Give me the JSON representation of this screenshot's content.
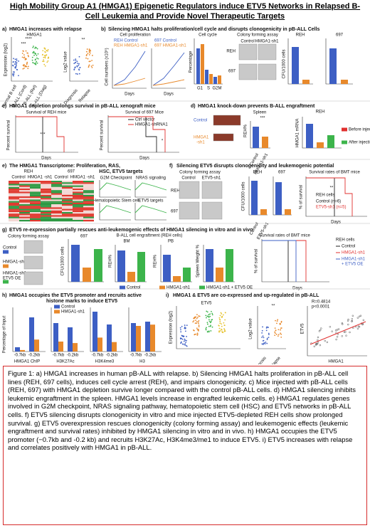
{
  "title": "High Mobility Group A1 (HMGA1) Epigenetic Regulators induce ETV5 Networks in Relapsed B-Cell Leukemia and Provide Novel Therapeutic Targets",
  "panels": {
    "a": {
      "label": "a)",
      "title": [
        "HMGA1 increases with relapse"
      ],
      "texts": [
        "HMGA1",
        "Expression (log2)",
        "Log2 value",
        "Diagnosis",
        "Relapse",
        "Normal B cell",
        "B-ALL (Cord)",
        "B-ALL (Rel)",
        "B-ALL (Diag)",
        "****",
        "***",
        "**"
      ]
    },
    "b": {
      "label": "b)",
      "title": [
        "Silencing HMGA1 halts proliferation/cell cycle and disrupts clonogenicity in pB-ALL Cells"
      ],
      "texts": [
        "Cell proliferation",
        "REH Control",
        "REH HMGA1-sh1",
        "697 Control",
        "697 HMGA1-sh1",
        "Cell numbers (x10⁵)",
        "Days",
        "Days",
        "Cell cycle",
        "Percentage",
        "G1",
        "S",
        "G2M",
        "Colony forming assay",
        "REH",
        "697",
        "Control",
        "HMGA1-sh1",
        "REH",
        "697",
        "CFU/1000 cells"
      ]
    },
    "c": {
      "label": "c)",
      "title": [
        "HMGA1 depletion prolongs survival in pB-ALL xenograft mice"
      ],
      "texts": [
        "Survival of REH mice",
        "Survival of 697 Mice",
        "Ctrl vector",
        "HMGA1-shRNA1",
        "Days",
        "Days",
        "Percent survival",
        "Percent survival",
        "***",
        "*"
      ]
    },
    "d": {
      "label": "d)",
      "title": [
        "HMGA1 knock-down prevents B-ALL engraftment"
      ],
      "texts": [
        "Control",
        "HMGA1",
        "-sh1",
        "Spleen",
        "REH%",
        "Control",
        "HMGA1-sh1",
        "REH",
        "HMGA1 mRNA",
        "Before injection",
        "After injection",
        "***"
      ]
    },
    "e": {
      "label": "e)",
      "title": [
        "The HMGA1 Transcriptome:  Proliferation, RAS,",
        "HSC, ETV5 targets"
      ],
      "texts": [
        "REH",
        "697",
        "Control",
        "HMGA1 -sh1",
        "Control",
        "HMGA1 -sh1",
        "G2M Checkpoint",
        "NRAS signaling",
        "Hematopoietic Stem cell",
        "ETV5 targets"
      ]
    },
    "f": {
      "label": "f)",
      "title": [
        "Silencing ETV5 disrupts clonogenicity and leukemogenic potential"
      ],
      "texts": [
        "Colony forming assay",
        "Control",
        "ETV5-sh1",
        "REH",
        "697",
        "REH",
        "697",
        "CFU/1000 cells",
        "Control",
        "ETV5-sh1",
        "Survival rates of BMT mice",
        "REH cells",
        "Control (n=6)",
        "ETV5-sh1 (n=5)",
        "Days",
        "% of survival",
        "**"
      ]
    },
    "g": {
      "label": "g)",
      "title": [
        "ETV5 re-expression partially rescues anti-leukemogenic effects of HMGA1 silencing in vitro and in vivo"
      ],
      "texts": [
        "Colony forming assay",
        "Control",
        "HMGA1-sh1",
        "HMGA1-sh1 +",
        "ETV5 OE",
        "697",
        "CFU/1000 cells",
        "B-ALL cell engraftment (REH cells)",
        "BM",
        "PB",
        "REH%",
        "REH%",
        "Spleen Weight %",
        "Survival rates of BMT mice",
        "REH cells",
        "Control",
        "HMGA1-sh1",
        "HMGA1-sh1",
        "+ ETV5 OE",
        "Days",
        "% of survival",
        "Control",
        "HMGA1-sh1",
        "HMGA1-sh1 + ETV5 OE"
      ]
    },
    "h": {
      "label": "h)",
      "title": [
        "HMGA1 occupies the ETV5 promoter and recruits active",
        "histone marks to induce ETV5"
      ],
      "texts": [
        "Control",
        "HMGA1-sh1",
        "Percentage of Input",
        "HMGA1 ChIP",
        "H3K27Ac",
        "H3K4me3",
        "H3",
        "-0.7kb",
        "-0.2kb",
        "-0.7kb",
        "-0.2kb",
        "-0.7kb",
        "-0.2kb",
        "-0.7kb",
        "-0.2kb"
      ]
    },
    "i": {
      "label": "i)",
      "title": [
        "HMGA1 & ETV5 are co-expressed and up-regulated in pB-ALL"
      ],
      "texts": [
        "ETV5",
        "Expression (log2)",
        "Log2 value",
        "Diagnosis",
        "Relapse",
        "R=0.4814",
        "p<0.0001",
        "ETV5",
        "HMGA1",
        "**"
      ]
    }
  },
  "caption": "Figure 1: a) HMGA1 increases in human pB-ALL with relapse. b) Silencing HMGA1 halts proliferation in pB-ALL cell lines (REH, 697 cells), induces cell cycle arrest (REH), and impairs clonogenicity. c) Mice injected with pB-ALL cells (REH, 697) with HMGA1 depletion survive longer compared with the control pB-ALL cells. d) HMGA1 silencing inhibits leukemic engraftment in the spleen. HMGA1 levels increase in engrafted leukemic cells. e) HMGA1 regulates genes involved in G2M checkpoint, NRAS signaling pathway, hematopoietic stem cell (HSC) and ETV5 networks in pB-ALL cells. f) ETV5 silencing disrupts clonogenicity in vitro and mice injected ETV5-depleted REH cells show prolonged survival. g) ETV5 overexpression rescues clonogenicity (colony forming assay) and leukemogenic effects (leukemic engraftment and survival rates) inhibited by HMGA1 silencing in vitro and in vivo. h) HMGA1 occupies the ETV5 promoter (−0.7kb and -0.2 kb) and recruits H3K27Ac, H3K4me3/me1 to induce ETV5. i) ETV5 increases with relapse and correlates positively with HMGA1 in pB-ALL."
}
